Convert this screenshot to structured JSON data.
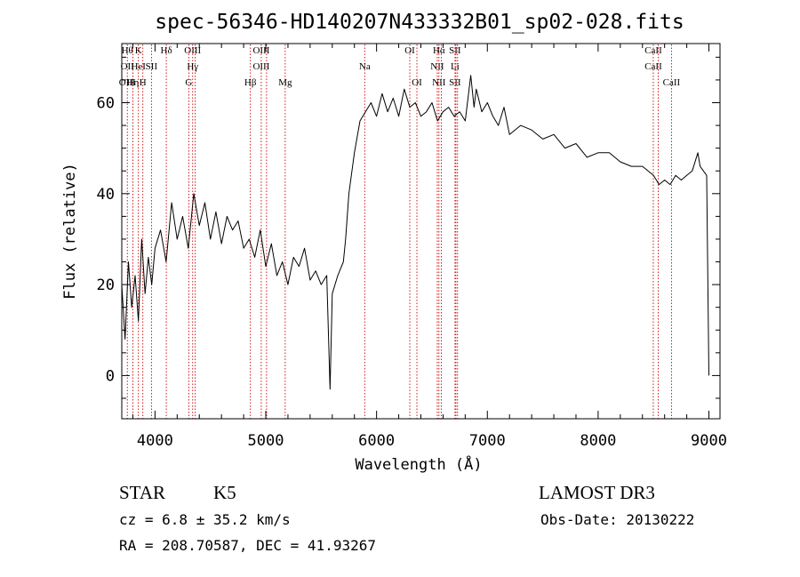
{
  "chart_data": {
    "type": "line",
    "title": "spec-56346-HD140207N433332B01_sp02-028.fits",
    "xlabel": "Wavelength (Å)",
    "ylabel": "Flux (relative)",
    "xlim": [
      3700,
      9100
    ],
    "ylim": [
      -9.5,
      73
    ],
    "x_ticks": [
      4000,
      5000,
      6000,
      7000,
      8000,
      9000
    ],
    "x_tick_labels": [
      "4000",
      "5000",
      "6000",
      "7000",
      "8000",
      "9000"
    ],
    "y_ticks": [
      0,
      20,
      40,
      60
    ],
    "y_tick_labels": [
      "0",
      "20",
      "40",
      "60"
    ],
    "grid": false,
    "line_color": "#000000",
    "marker_color": "#cc0000",
    "series": [
      {
        "x": [
          3700,
          3730,
          3760,
          3790,
          3820,
          3850,
          3880,
          3910,
          3940,
          3970,
          4000,
          4050,
          4100,
          4150,
          4200,
          4250,
          4300,
          4350,
          4400,
          4450,
          4500,
          4550,
          4600,
          4650,
          4700,
          4750,
          4800,
          4850,
          4900,
          4950,
          5000,
          5050,
          5100,
          5150,
          5200,
          5250,
          5300,
          5350,
          5400,
          5450,
          5500,
          5550,
          5580,
          5600,
          5650,
          5700,
          5720,
          5750,
          5800,
          5850,
          5900,
          5950,
          6000,
          6050,
          6100,
          6150,
          6200,
          6250,
          6300,
          6350,
          6400,
          6450,
          6500,
          6550,
          6600,
          6650,
          6700,
          6750,
          6800,
          6850,
          6880,
          6900,
          6950,
          7000,
          7050,
          7100,
          7150,
          7200,
          7300,
          7400,
          7500,
          7600,
          7700,
          7800,
          7900,
          8000,
          8100,
          8200,
          8300,
          8400,
          8500,
          8550,
          8600,
          8650,
          8700,
          8750,
          8800,
          8850,
          8900,
          8920,
          8950,
          8980,
          9000
        ],
        "y": [
          20,
          8,
          25,
          15,
          22,
          12,
          30,
          18,
          26,
          20,
          28,
          32,
          25,
          38,
          30,
          35,
          28,
          40,
          33,
          38,
          30,
          36,
          29,
          35,
          32,
          34,
          28,
          30,
          26,
          32,
          24,
          29,
          22,
          25,
          20,
          26,
          24,
          28,
          21,
          23,
          20,
          22,
          -3,
          18,
          22,
          25,
          30,
          40,
          49,
          56,
          58,
          60,
          57,
          62,
          58,
          61,
          57,
          63,
          59,
          60,
          57,
          58,
          60,
          56,
          58,
          59,
          57,
          58,
          56,
          66,
          59,
          63,
          58,
          60,
          57,
          55,
          59,
          53,
          55,
          54,
          52,
          53,
          50,
          51,
          48,
          49,
          49,
          47,
          46,
          46,
          44,
          42,
          43,
          42,
          44,
          43,
          44,
          45,
          49,
          46,
          45,
          44,
          0
        ]
      }
    ],
    "line_markers": [
      {
        "x": 3750,
        "labels": [
          "Hθ",
          "OII",
          "OIII"
        ]
      },
      {
        "x": 3800,
        "labels": [
          "",
          "",
          "Hη"
        ]
      },
      {
        "x": 3850,
        "labels": [
          "K",
          "HeI",
          ""
        ]
      },
      {
        "x": 3890,
        "labels": [
          "",
          "",
          "H"
        ]
      },
      {
        "x": 3968,
        "labels": [
          "",
          "SII",
          ""
        ]
      },
      {
        "x": 4102,
        "labels": [
          "Hδ",
          "",
          ""
        ]
      },
      {
        "x": 4305,
        "labels": [
          "",
          "",
          "G"
        ]
      },
      {
        "x": 4340,
        "labels": [
          "OIII",
          "Hγ",
          ""
        ]
      },
      {
        "x": 4363,
        "labels": [
          "",
          "",
          ""
        ]
      },
      {
        "x": 4861,
        "labels": [
          "",
          "",
          "Hβ"
        ]
      },
      {
        "x": 4959,
        "labels": [
          "OIII",
          "OIII",
          ""
        ]
      },
      {
        "x": 5007,
        "labels": [
          "",
          "",
          ""
        ]
      },
      {
        "x": 5175,
        "labels": [
          "",
          "",
          "Mg"
        ]
      },
      {
        "x": 5893,
        "labels": [
          "",
          "Na",
          ""
        ]
      },
      {
        "x": 6300,
        "labels": [
          "OI",
          "",
          ""
        ]
      },
      {
        "x": 6364,
        "labels": [
          "",
          "",
          "OI"
        ]
      },
      {
        "x": 6548,
        "labels": [
          "",
          "NII",
          ""
        ]
      },
      {
        "x": 6563,
        "labels": [
          "Hα",
          "",
          "NII"
        ]
      },
      {
        "x": 6584,
        "labels": [
          "",
          "",
          ""
        ]
      },
      {
        "x": 6708,
        "labels": [
          "SII",
          "Li",
          "SII"
        ]
      },
      {
        "x": 6716,
        "labels": [
          "",
          "",
          ""
        ]
      },
      {
        "x": 6731,
        "labels": [
          "",
          "",
          ""
        ]
      },
      {
        "x": 8498,
        "labels": [
          "CaII",
          "CaII",
          ""
        ]
      },
      {
        "x": 8542,
        "labels": [
          "",
          "",
          ""
        ]
      },
      {
        "x": 8662,
        "labels": [
          "",
          "",
          "CaII"
        ]
      }
    ]
  },
  "info": {
    "object_class": "STAR",
    "subclass": "K5",
    "cz": "cz = 6.8 ± 35.2 km/s",
    "coords": "RA = 208.70587, DEC =  41.93267",
    "survey": "LAMOST DR3",
    "obs_date": "Obs-Date: 20130222"
  }
}
